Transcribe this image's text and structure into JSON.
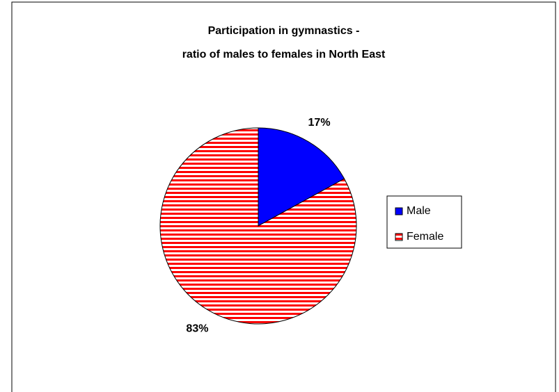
{
  "chart_data": {
    "type": "pie",
    "title": "Participation in gymnastics -\nratio of males to females in North East",
    "categories": [
      "Male",
      "Female"
    ],
    "values": [
      17,
      83
    ],
    "value_labels": [
      "17%",
      "83%"
    ],
    "colors": [
      "#0000ff",
      "#ff0000"
    ],
    "patterns": [
      "solid",
      "horizontal-stripes"
    ],
    "legend": "right"
  }
}
